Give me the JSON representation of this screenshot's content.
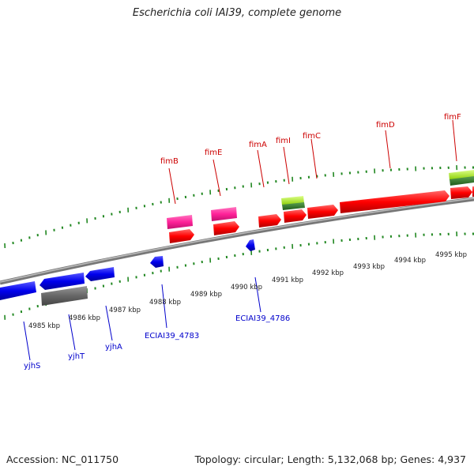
{
  "header": {
    "title": "Escherichia coli IAI39, complete genome"
  },
  "footer": {
    "accession": "Accession: NC_011750",
    "summary": "Topology: circular; Length: 5,132,068 bp; Genes: 4,937"
  },
  "scale": {
    "labels": [
      "4985 kbp",
      "4986 kbp",
      "4987 kbp",
      "4988 kbp",
      "4989 kbp",
      "4990 kbp",
      "4991 kbp",
      "4992 kbp",
      "4993 kbp",
      "4994 kbp",
      "4995 kbp"
    ]
  },
  "genes_upper": [
    {
      "name": "fimB",
      "color": "#cc0000"
    },
    {
      "name": "fimE",
      "color": "#cc0000"
    },
    {
      "name": "fimA",
      "color": "#cc0000"
    },
    {
      "name": "fimI",
      "color": "#cc0000"
    },
    {
      "name": "fimC",
      "color": "#cc0000"
    },
    {
      "name": "fimD",
      "color": "#cc0000"
    },
    {
      "name": "fimF",
      "color": "#cc0000"
    }
  ],
  "genes_lower": [
    {
      "name": "yjhS",
      "color": "#0000cc"
    },
    {
      "name": "yjhT",
      "color": "#0000cc"
    },
    {
      "name": "yjhA",
      "color": "#0000cc"
    },
    {
      "name": "ECIAI39_4783",
      "color": "#0000cc"
    },
    {
      "name": "ECIAI39_4786",
      "color": "#0000cc"
    }
  ],
  "colors": {
    "forward_cds": "#ff0000",
    "reverse_cds": "#0000ee",
    "pseudo": "#666666",
    "rna_pink": "#ff2299",
    "rna_green": "#77cc00",
    "ticks": "#228822",
    "backbone": "#8c8c8c"
  }
}
